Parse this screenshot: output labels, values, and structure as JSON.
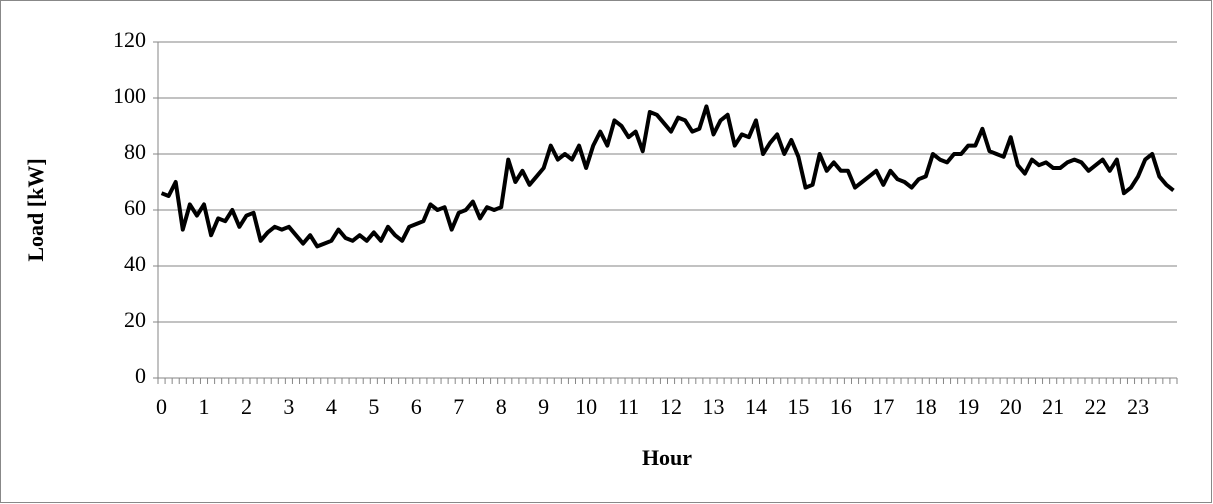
{
  "chart_data": {
    "type": "line",
    "xlabel": "Hour",
    "ylabel": "Load [kW]",
    "categories": [
      "0",
      null,
      null,
      null,
      null,
      null,
      "1",
      null,
      null,
      null,
      null,
      null,
      "2",
      null,
      null,
      null,
      null,
      null,
      "3",
      null,
      null,
      null,
      null,
      null,
      "4",
      null,
      null,
      null,
      null,
      null,
      "5",
      null,
      null,
      null,
      null,
      null,
      "6",
      null,
      null,
      null,
      null,
      null,
      "7",
      null,
      null,
      null,
      null,
      null,
      "8",
      null,
      null,
      null,
      null,
      null,
      "9",
      null,
      null,
      null,
      null,
      null,
      "10",
      null,
      null,
      null,
      null,
      null,
      "11",
      null,
      null,
      null,
      null,
      null,
      "12",
      null,
      null,
      null,
      null,
      null,
      "13",
      null,
      null,
      null,
      null,
      null,
      "14",
      null,
      null,
      null,
      null,
      null,
      "15",
      null,
      null,
      null,
      null,
      null,
      "16",
      null,
      null,
      null,
      null,
      null,
      "17",
      null,
      null,
      null,
      null,
      null,
      "18",
      null,
      null,
      null,
      null,
      null,
      "19",
      null,
      null,
      null,
      null,
      null,
      "20",
      null,
      null,
      null,
      null,
      null,
      "21",
      null,
      null,
      null,
      null,
      null,
      "22",
      null,
      null,
      null,
      null,
      null,
      "23",
      null,
      null,
      null,
      null,
      null
    ],
    "values": [
      66,
      65,
      70,
      53,
      62,
      58,
      62,
      51,
      57,
      56,
      60,
      54,
      58,
      59,
      49,
      52,
      54,
      53,
      54,
      51,
      48,
      51,
      47,
      48,
      49,
      53,
      50,
      49,
      51,
      49,
      52,
      49,
      54,
      51,
      49,
      54,
      55,
      56,
      62,
      60,
      61,
      53,
      59,
      60,
      63,
      57,
      61,
      60,
      61,
      78,
      70,
      74,
      69,
      72,
      75,
      83,
      78,
      80,
      78,
      83,
      75,
      83,
      88,
      83,
      92,
      90,
      86,
      88,
      81,
      95,
      94,
      91,
      88,
      93,
      92,
      88,
      89,
      97,
      87,
      92,
      94,
      83,
      87,
      86,
      92,
      80,
      84,
      87,
      80,
      85,
      79,
      68,
      69,
      80,
      74,
      77,
      74,
      74,
      68,
      70,
      72,
      74,
      69,
      74,
      71,
      70,
      68,
      71,
      72,
      80,
      78,
      77,
      80,
      80,
      83,
      83,
      89,
      81,
      80,
      79,
      86,
      76,
      73,
      78,
      76,
      77,
      75,
      75,
      77,
      78,
      77,
      74,
      76,
      78,
      74,
      78,
      66,
      68,
      72,
      78,
      80,
      72,
      69,
      67
    ],
    "color": "#000000",
    "ylim": [
      0,
      120
    ],
    "yticks": [
      0,
      20,
      40,
      60,
      80,
      100,
      120
    ],
    "grid": true
  }
}
